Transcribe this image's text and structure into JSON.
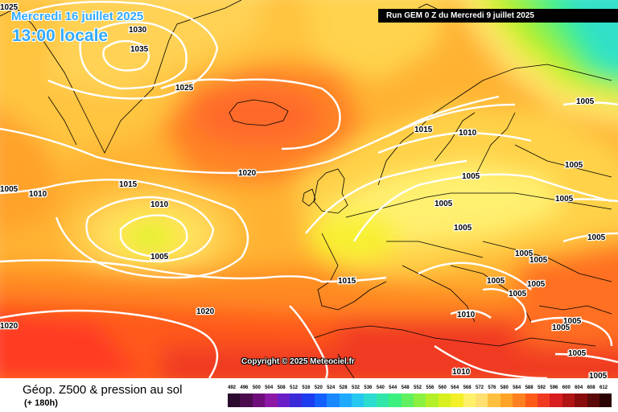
{
  "header": {
    "date": "Mercredi 16 juillet 2025",
    "time": "13:00 locale",
    "run": "Run GEM 0 Z du Mercredi 9 juillet 2025"
  },
  "copyright": "Copyright © 2025 Meteociel.fr",
  "footer": {
    "title": "Géop. Z500 & pression au sol",
    "subtitle": "(+ 180h)"
  },
  "scale": {
    "ticks": [
      "492",
      "496",
      "500",
      "504",
      "508",
      "512",
      "516",
      "520",
      "524",
      "528",
      "532",
      "536",
      "540",
      "544",
      "548",
      "552",
      "556",
      "560",
      "564",
      "568",
      "572",
      "576",
      "580",
      "584",
      "588",
      "592",
      "596",
      "600",
      "604",
      "608",
      "612"
    ],
    "colors": [
      "#2a0a2e",
      "#4b0c4e",
      "#6d0e7a",
      "#8c18a6",
      "#6a1ec8",
      "#3a2ad8",
      "#1e3cf0",
      "#1460ff",
      "#1a88ff",
      "#20aaff",
      "#27c8f0",
      "#2cdcd0",
      "#30e6a8",
      "#3cf080",
      "#60f060",
      "#8cf040",
      "#b4f028",
      "#d8f020",
      "#f4f028",
      "#fff06a",
      "#ffe070",
      "#ffc040",
      "#ffa428",
      "#ff8020",
      "#ff5a18",
      "#f03a22",
      "#d81e1e",
      "#b01414",
      "#880c0c",
      "#5a0808",
      "#2a0404"
    ]
  },
  "isobar_labels": [
    "1025",
    "1030",
    "1035",
    "1025",
    "1020",
    "1015",
    "1010",
    "1005",
    "1005",
    "1010",
    "1015",
    "1020",
    "1020",
    "1015",
    "1010",
    "1005",
    "1005",
    "1005",
    "1005",
    "1005",
    "1005",
    "1005",
    "1005",
    "1005",
    "1005",
    "1005",
    "1005",
    "1005",
    "1005",
    "1005",
    "1005",
    "1010",
    "1010"
  ],
  "colors": {
    "title_blue": "#33aaff",
    "isobar": "#ffffff",
    "coast": "#000000"
  }
}
